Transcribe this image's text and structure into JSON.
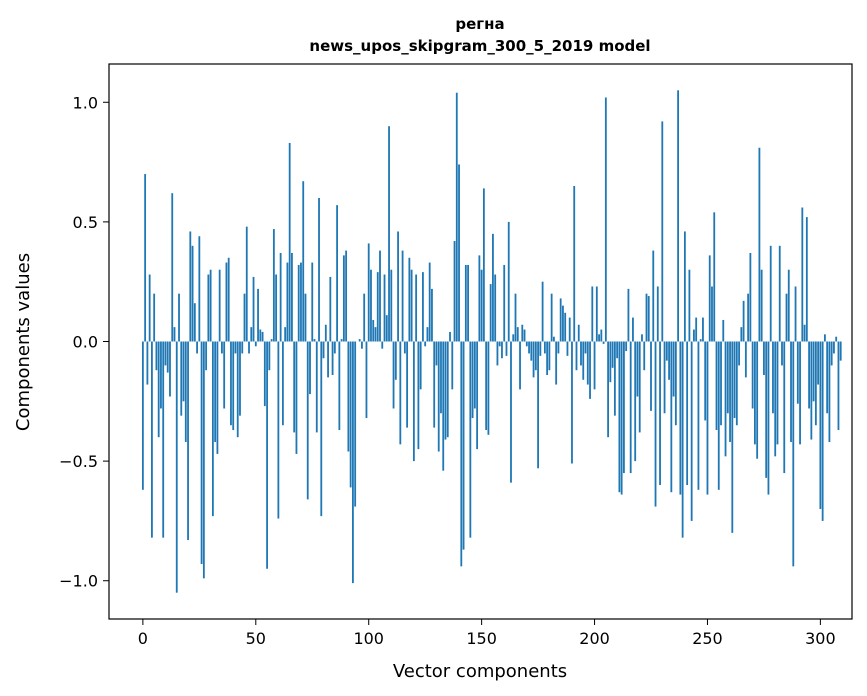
{
  "chart_data": {
    "type": "bar",
    "title_line1": "регна",
    "title_line2": "news_upos_skipgram_300_5_2019 model",
    "xlabel": "Vector components",
    "ylabel": "Components values",
    "xlim": [
      -15,
      314
    ],
    "ylim": [
      -1.16,
      1.16
    ],
    "xticks": [
      0,
      50,
      100,
      150,
      200,
      250,
      300
    ],
    "xtick_labels": [
      "0",
      "50",
      "100",
      "150",
      "200",
      "250",
      "300"
    ],
    "yticks": [
      -1.0,
      -0.5,
      0.0,
      0.5,
      1.0
    ],
    "ytick_labels": [
      "−1.0",
      "−0.5",
      "0.0",
      "0.5",
      "1.0"
    ],
    "bar_color": "#1f77b4",
    "values": [
      -0.62,
      0.7,
      -0.18,
      0.28,
      -0.82,
      0.2,
      -0.12,
      -0.4,
      -0.28,
      -0.82,
      -0.1,
      -0.13,
      -0.23,
      0.62,
      0.06,
      -1.05,
      0.2,
      -0.31,
      -0.25,
      -0.42,
      -0.83,
      0.46,
      0.4,
      0.16,
      -0.05,
      0.44,
      -0.93,
      -0.99,
      -0.12,
      0.28,
      0.3,
      -0.73,
      -0.42,
      -0.47,
      0.3,
      -0.05,
      -0.28,
      0.33,
      0.35,
      -0.35,
      -0.37,
      -0.05,
      -0.4,
      -0.31,
      -0.05,
      0.2,
      0.48,
      -0.05,
      0.06,
      0.27,
      -0.02,
      0.22,
      0.05,
      0.04,
      -0.27,
      -0.95,
      -0.12,
      0.01,
      0.47,
      0.28,
      -0.74,
      0.37,
      -0.35,
      0.06,
      0.33,
      0.83,
      0.37,
      -0.38,
      -0.47,
      0.32,
      0.33,
      0.67,
      0.2,
      -0.66,
      -0.22,
      0.33,
      0.01,
      -0.38,
      0.6,
      -0.73,
      -0.07,
      0.07,
      -0.15,
      0.27,
      -0.14,
      -0.05,
      0.57,
      -0.37,
      0.01,
      0.36,
      0.38,
      -0.46,
      -0.61,
      -1.01,
      -0.69,
      0.0,
      0.01,
      -0.03,
      0.2,
      -0.32,
      0.41,
      0.3,
      0.09,
      0.06,
      0.29,
      0.38,
      -0.03,
      0.28,
      0.11,
      0.9,
      0.3,
      -0.28,
      -0.16,
      0.46,
      -0.43,
      0.38,
      -0.05,
      -0.36,
      0.35,
      0.3,
      -0.5,
      0.28,
      -0.45,
      -0.2,
      0.29,
      -0.02,
      0.06,
      0.33,
      0.22,
      -0.36,
      -0.1,
      -0.46,
      -0.3,
      -0.54,
      -0.41,
      -0.4,
      0.04,
      -0.2,
      0.42,
      1.04,
      0.74,
      -0.94,
      -0.87,
      0.32,
      0.32,
      -0.82,
      -0.32,
      -0.28,
      -0.45,
      0.36,
      0.3,
      0.64,
      -0.37,
      -0.39,
      0.24,
      0.45,
      0.28,
      -0.1,
      -0.02,
      -0.07,
      0.32,
      -0.06,
      0.5,
      -0.59,
      0.03,
      0.2,
      0.06,
      -0.2,
      0.07,
      0.05,
      -0.02,
      -0.05,
      -0.08,
      -0.15,
      -0.12,
      -0.53,
      -0.06,
      0.25,
      -0.05,
      -0.14,
      -0.12,
      0.2,
      0.02,
      -0.18,
      -0.05,
      0.18,
      0.15,
      0.12,
      -0.06,
      0.1,
      -0.51,
      0.65,
      -0.12,
      0.07,
      -0.1,
      -0.16,
      -0.05,
      -0.18,
      -0.24,
      0.23,
      -0.2,
      0.23,
      0.03,
      0.05,
      -0.01,
      1.02,
      -0.4,
      -0.17,
      -0.11,
      -0.31,
      -0.07,
      -0.63,
      -0.64,
      -0.55,
      -0.04,
      0.22,
      -0.55,
      0.1,
      -0.5,
      -0.23,
      -0.38,
      0.03,
      -0.12,
      0.2,
      0.19,
      -0.29,
      0.38,
      -0.69,
      0.23,
      -0.6,
      0.92,
      -0.3,
      -0.08,
      -0.16,
      -0.63,
      -0.23,
      -0.35,
      1.05,
      -0.64,
      -0.82,
      0.46,
      -0.6,
      0.3,
      -0.75,
      0.05,
      0.1,
      -0.62,
      0.01,
      0.1,
      -0.33,
      -0.64,
      0.36,
      0.23,
      0.54,
      -0.37,
      -0.62,
      -0.35,
      0.09,
      -0.48,
      -0.3,
      -0.42,
      -0.8,
      -0.32,
      -0.35,
      -0.1,
      0.06,
      0.17,
      -0.15,
      0.2,
      0.37,
      -0.28,
      -0.43,
      -0.49,
      0.81,
      0.3,
      -0.14,
      -0.57,
      -0.64,
      0.4,
      -0.3,
      -0.48,
      -0.43,
      0.4,
      -0.1,
      -0.55,
      0.2,
      0.3,
      -0.42,
      -0.94,
      0.23,
      -0.26,
      -0.43,
      0.56,
      0.07,
      0.52,
      -0.28,
      -0.41,
      -0.25,
      -0.35,
      -0.18,
      -0.7,
      -0.75,
      0.03,
      -0.3,
      -0.42,
      -0.1,
      -0.05,
      0.02,
      -0.37,
      -0.08
    ]
  }
}
